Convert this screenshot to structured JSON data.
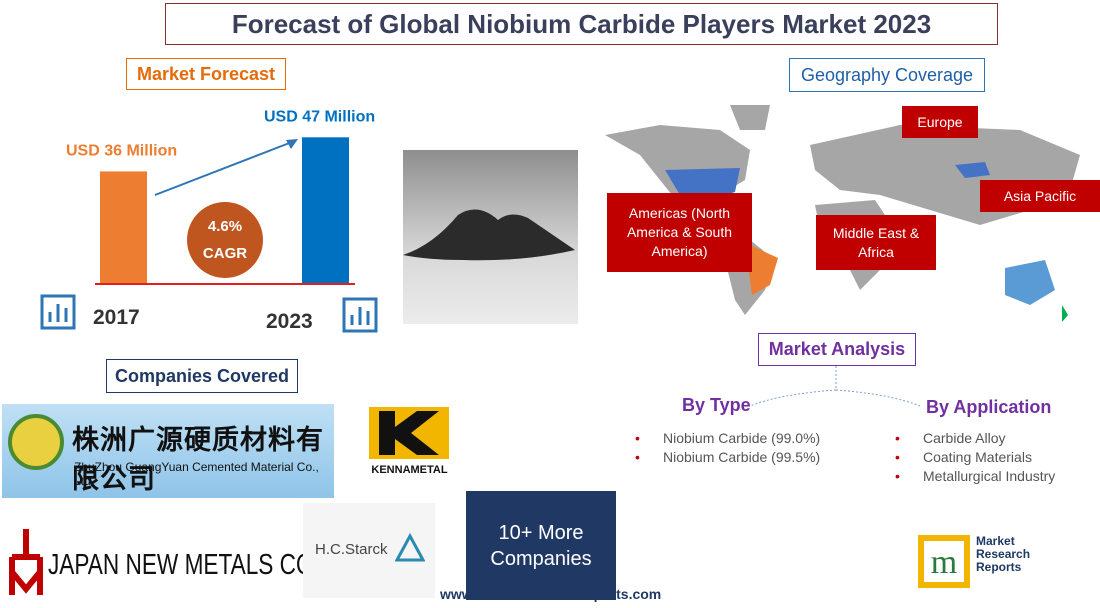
{
  "title": "Forecast of Global Niobium Carbide Players Market 2023",
  "market_forecast": {
    "heading": "Market Forecast",
    "bars": [
      {
        "year": "2017",
        "label": "USD 36 Million",
        "value": 36
      },
      {
        "year": "2023",
        "label": "USD 47 Million",
        "value": 47
      }
    ],
    "cagr_value": "4.6%",
    "cagr_label": "CAGR"
  },
  "geography": {
    "heading": "Geography Coverage",
    "regions": [
      "Europe",
      "Asia Pacific",
      "Americas (North America & South America)",
      "Middle East & Africa"
    ]
  },
  "companies": {
    "heading": "Companies Covered",
    "zhuzhou_cn": "株洲广源硬质材料有限公司",
    "zhuzhou_en": "ZhuZhou GuangYuan Cemented Material Co., Ltd",
    "kennametal": "KENNAMETAL",
    "japan_new_metals": "JAPAN NEW METALS CO., LTD.",
    "hc_starck": "H.C.Starck",
    "more": "10+ More Companies"
  },
  "analysis": {
    "heading": "Market Analysis",
    "by_type": {
      "heading": "By Type",
      "items": [
        "Niobium Carbide (99.0%)",
        "Niobium Carbide (99.5%)"
      ]
    },
    "by_application": {
      "heading": "By Application",
      "items": [
        "Carbide Alloy",
        "Coating Materials",
        "Metallurgical Industry"
      ]
    }
  },
  "footer": {
    "website": "www.marketresearchreports.com",
    "brand": [
      "Market",
      "Research",
      "Reports"
    ]
  }
}
